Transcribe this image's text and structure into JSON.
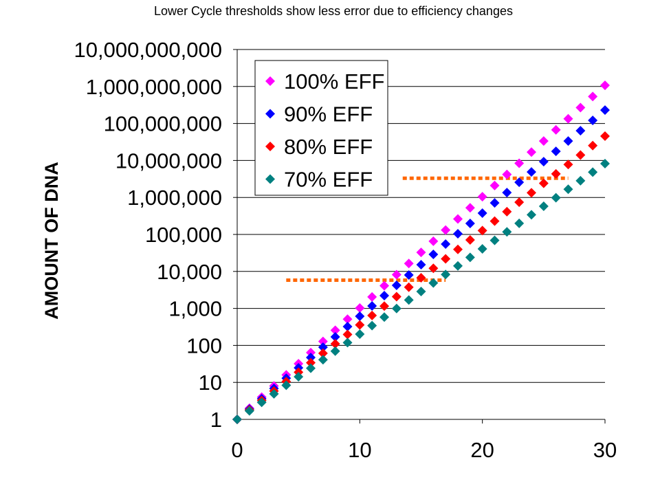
{
  "chart_data": {
    "type": "scatter",
    "title": "Lower Cycle thresholds show less error due to efficiency changes",
    "xlabel": "",
    "ylabel": "AMOUNT OF DNA",
    "xlim": [
      0,
      30
    ],
    "ylim": [
      1,
      10000000000
    ],
    "yscale": "log",
    "grid": "horizontal major gridlines",
    "legend_position": "top-left inside plot",
    "x_ticks": [
      "0",
      "10",
      "20",
      "30"
    ],
    "y_ticks": [
      "1",
      "10",
      "100",
      "1,000",
      "10,000",
      "100,000",
      "1,000,000",
      "10,000,000",
      "100,000,000",
      "1,000,000,000",
      "10,000,000,000"
    ],
    "x": [
      0,
      1,
      2,
      3,
      4,
      5,
      6,
      7,
      8,
      9,
      10,
      11,
      12,
      13,
      14,
      15,
      16,
      17,
      18,
      19,
      20,
      21,
      22,
      23,
      24,
      25,
      26,
      27,
      28,
      29,
      30
    ],
    "series": [
      {
        "name": "100% EFF",
        "growth_per_cycle": 2.0,
        "color": "#FF00FF",
        "values": [
          1,
          2,
          4,
          8,
          16,
          32,
          64,
          128,
          256,
          512,
          1024,
          2048,
          4096,
          8192,
          16384,
          32768,
          65536,
          131072,
          262144,
          524288,
          1048576,
          2097152,
          4194304,
          8388608,
          16777216,
          33554432,
          67108864,
          134217728,
          268435456,
          536870912,
          1073741824
        ]
      },
      {
        "name": "90% EFF",
        "growth_per_cycle": 1.9,
        "color": "#0000FF",
        "values": [
          1,
          1.9,
          3.61,
          6.86,
          13.0,
          24.8,
          47.0,
          89.4,
          170,
          323,
          613,
          1165,
          2213,
          4205,
          7990,
          15181,
          28844,
          54804,
          104127,
          197842,
          375900,
          714209,
          1356998,
          2578296,
          4898762,
          9307648,
          17684531,
          33600610,
          63841160,
          121298203,
          230466586
        ]
      },
      {
        "name": "80% EFF",
        "growth_per_cycle": 1.8,
        "color": "#FF0000",
        "values": [
          1,
          1.8,
          3.24,
          5.83,
          10.5,
          18.9,
          34.0,
          61.2,
          110,
          198,
          357,
          643,
          1157,
          2082,
          3748,
          6747,
          12144,
          21859,
          39346,
          70824,
          127482,
          229468,
          413043,
          743477,
          1338259,
          2408866,
          4335959,
          7804726,
          14048506,
          25287311,
          45517160
        ]
      },
      {
        "name": "70% EFF",
        "growth_per_cycle": 1.7,
        "color": "#008080",
        "values": [
          1,
          1.7,
          2.89,
          4.91,
          8.35,
          14.2,
          24.1,
          41.0,
          69.8,
          119,
          202,
          343,
          583,
          992,
          1686,
          2866,
          4872,
          8283,
          14081,
          23937,
          40642,
          69158,
          117569,
          199867,
          339773,
          577614,
          981943,
          1669303,
          2837815,
          4824286,
          8201286
        ]
      }
    ],
    "threshold_lines": [
      {
        "x_start": 4,
        "x_end": 17,
        "y": 5800,
        "color": "#FF6600"
      },
      {
        "x_start": 13.5,
        "x_end": 27,
        "y": 3300000,
        "color": "#FF6600"
      }
    ]
  }
}
